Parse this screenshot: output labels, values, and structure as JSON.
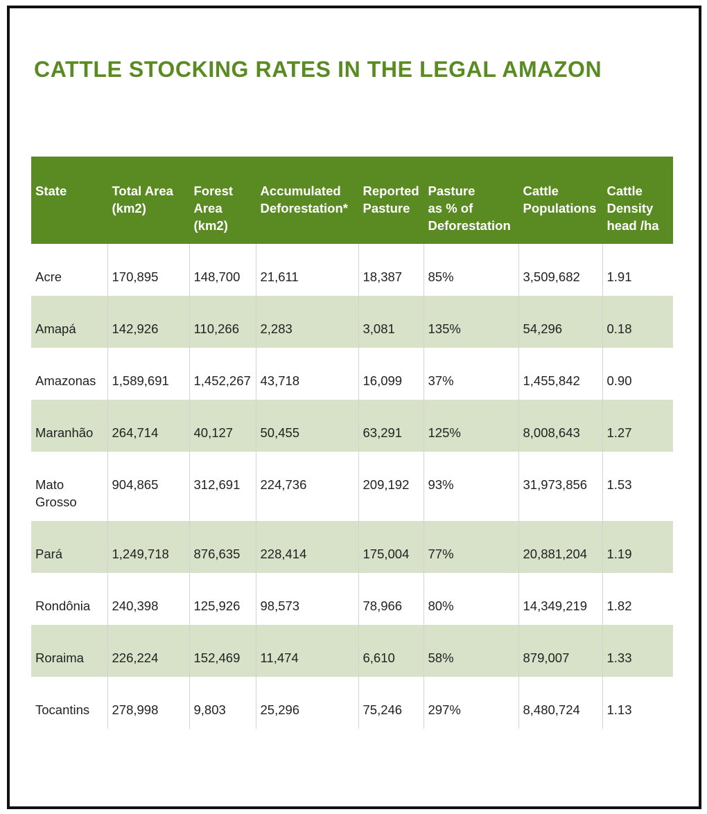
{
  "title": "CATTLE STOCKING RATES IN THE LEGAL AMAZON",
  "headers": [
    [
      "State"
    ],
    [
      "Total Area",
      "(km2)"
    ],
    [
      "Forest",
      "Area",
      "(km2)"
    ],
    [
      "Accumulated",
      "Deforestation*"
    ],
    [
      "Reported",
      "Pasture"
    ],
    [
      "Pasture",
      "as % of",
      "Deforestation"
    ],
    [
      "Cattle",
      "Populations"
    ],
    [
      "Cattle",
      "Density",
      "head /ha"
    ]
  ],
  "rows": [
    {
      "state": [
        "Acre"
      ],
      "total_area": "170,895",
      "forest_area": "148,700",
      "accumulated_deforestation": "21,611",
      "reported_pasture": "18,387",
      "pasture_pct": "85%",
      "cattle_populations": "3,509,682",
      "cattle_density": "1.91"
    },
    {
      "state": [
        "Amapá"
      ],
      "total_area": "142,926",
      "forest_area": "110,266",
      "accumulated_deforestation": "2,283",
      "reported_pasture": "3,081",
      "pasture_pct": "135%",
      "cattle_populations": "54,296",
      "cattle_density": "0.18"
    },
    {
      "state": [
        "Amazonas"
      ],
      "total_area": "1,589,691",
      "forest_area": "1,452,267",
      "accumulated_deforestation": "43,718",
      "reported_pasture": "16,099",
      "pasture_pct": "37%",
      "cattle_populations": "1,455,842",
      "cattle_density": "0.90"
    },
    {
      "state": [
        "Maranhão"
      ],
      "total_area": "264,714",
      "forest_area": "40,127",
      "accumulated_deforestation": "50,455",
      "reported_pasture": "63,291",
      "pasture_pct": "125%",
      "cattle_populations": "8,008,643",
      "cattle_density": "1.27"
    },
    {
      "state": [
        "Mato",
        "Grosso"
      ],
      "total_area": "904,865",
      "forest_area": "312,691",
      "accumulated_deforestation": "224,736",
      "reported_pasture": "209,192",
      "pasture_pct": "93%",
      "cattle_populations": "31,973,856",
      "cattle_density": "1.53"
    },
    {
      "state": [
        "Pará"
      ],
      "total_area": "1,249,718",
      "forest_area": "876,635",
      "accumulated_deforestation": "228,414",
      "reported_pasture": "175,004",
      "pasture_pct": "77%",
      "cattle_populations": "20,881,204",
      "cattle_density": "1.19"
    },
    {
      "state": [
        "Rondônia"
      ],
      "total_area": "240,398",
      "forest_area": "125,926",
      "accumulated_deforestation": "98,573",
      "reported_pasture": "78,966",
      "pasture_pct": "80%",
      "cattle_populations": "14,349,219",
      "cattle_density": "1.82"
    },
    {
      "state": [
        "Roraima"
      ],
      "total_area": "226,224",
      "forest_area": "152,469",
      "accumulated_deforestation": "11,474",
      "reported_pasture": "6,610",
      "pasture_pct": "58%",
      "cattle_populations": "879,007",
      "cattle_density": "1.33"
    },
    {
      "state": [
        "Tocantins"
      ],
      "total_area": "278,998",
      "forest_area": "9,803",
      "accumulated_deforestation": "25,296",
      "reported_pasture": "75,246",
      "pasture_pct": "297%",
      "cattle_populations": "8,480,724",
      "cattle_density": "1.13"
    }
  ],
  "colors": {
    "header_green": "#5a8a22",
    "title_green": "#5a8a22",
    "stripe": "#d7e2c8",
    "frame": "#111111"
  }
}
